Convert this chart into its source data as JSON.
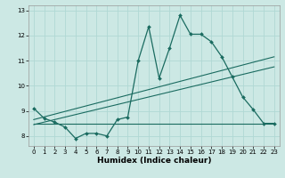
{
  "title": "",
  "xlabel": "Humidex (Indice chaleur)",
  "ylabel": "",
  "bg_color": "#cce8e4",
  "line_color": "#1a6b60",
  "grid_color": "#b0d8d4",
  "xlim": [
    -0.5,
    23.5
  ],
  "ylim": [
    7.6,
    13.2
  ],
  "xticks": [
    0,
    1,
    2,
    3,
    4,
    5,
    6,
    7,
    8,
    9,
    10,
    11,
    12,
    13,
    14,
    15,
    16,
    17,
    18,
    19,
    20,
    21,
    22,
    23
  ],
  "yticks": [
    8,
    9,
    10,
    11,
    12,
    13
  ],
  "main_x": [
    0,
    1,
    2,
    3,
    4,
    5,
    6,
    7,
    8,
    9,
    10,
    11,
    12,
    13,
    14,
    15,
    16,
    17,
    18,
    19,
    20,
    21,
    22,
    23
  ],
  "main_y": [
    9.1,
    8.7,
    8.55,
    8.35,
    7.9,
    8.1,
    8.1,
    8.0,
    8.65,
    8.75,
    11.0,
    12.35,
    10.3,
    11.5,
    12.8,
    12.05,
    12.05,
    11.75,
    11.15,
    10.35,
    9.55,
    9.05,
    8.5,
    8.5
  ],
  "trend1_x": [
    0,
    23
  ],
  "trend1_y": [
    8.65,
    11.15
  ],
  "trend2_x": [
    0,
    23
  ],
  "trend2_y": [
    8.45,
    10.75
  ],
  "trend3_x": [
    0,
    23
  ],
  "trend3_y": [
    8.5,
    8.5
  ]
}
